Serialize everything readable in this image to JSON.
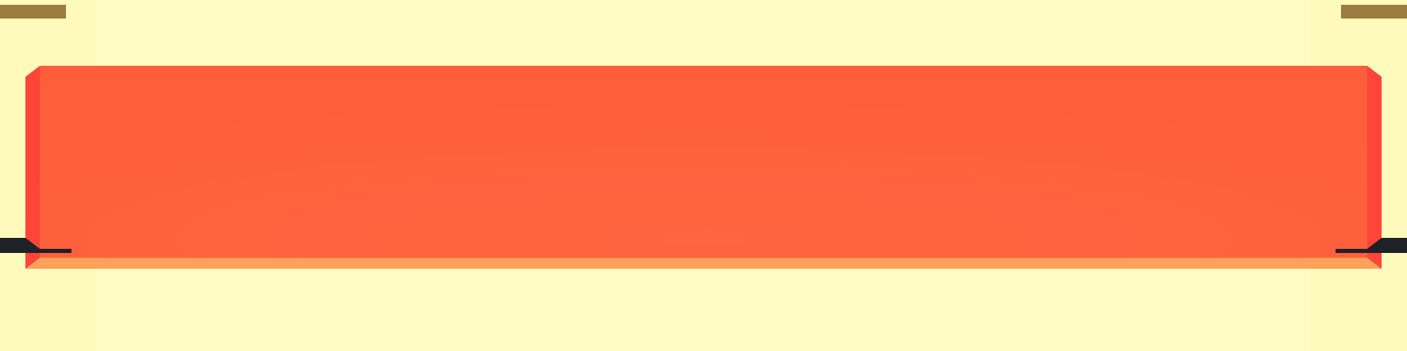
{
  "scene": {
    "background_color": "#fffcc2",
    "side_strip_color": "#fefabb",
    "banner": {
      "face_color": "#ff5e3a",
      "face_center_color": "#ff6540",
      "side_color": "#ff4538",
      "bottom_edge_color": "#ffa05b"
    },
    "top_tabs_color": "#9b7b3f",
    "hooks_color": "#1e2125"
  }
}
